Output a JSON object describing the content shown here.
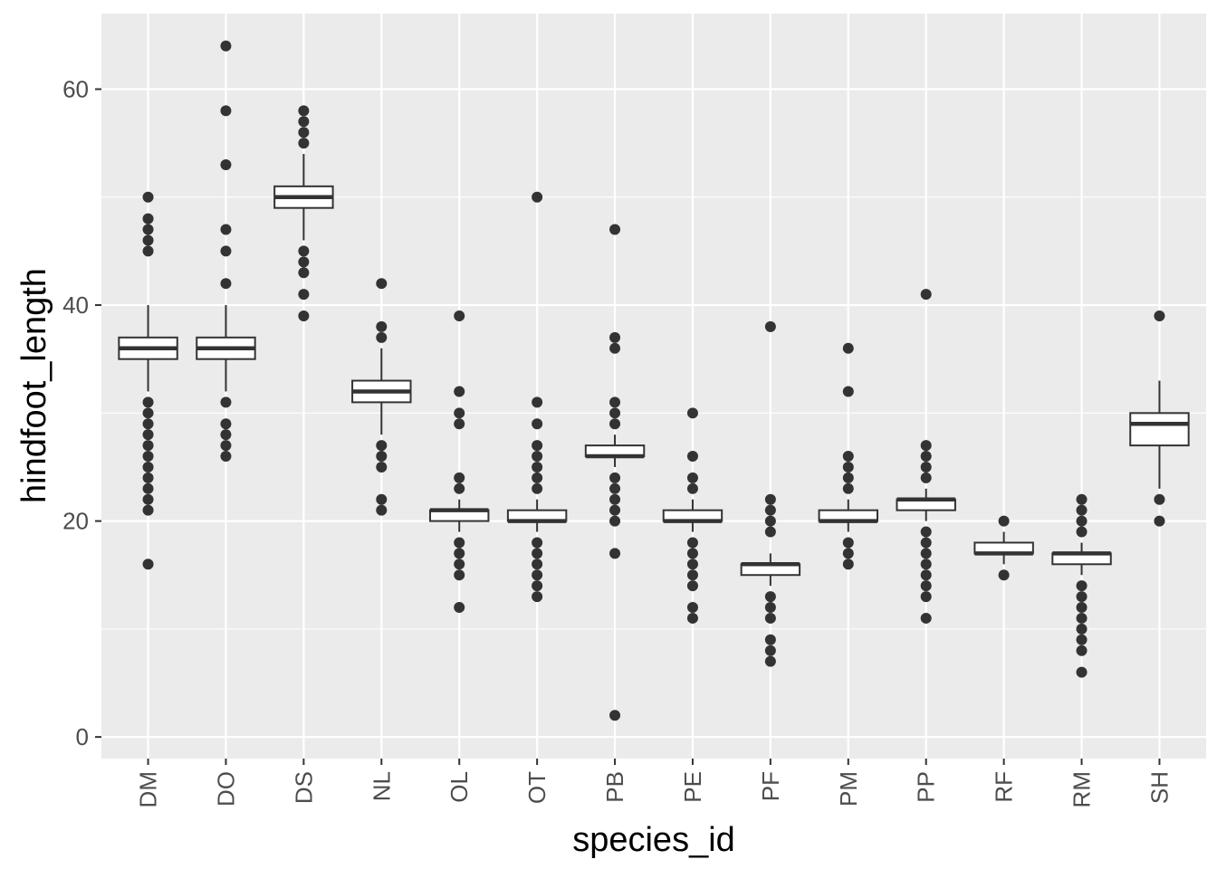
{
  "chart_data": {
    "type": "boxplot",
    "xlabel": "species_id",
    "ylabel": "hindfoot_length",
    "ylim": [
      -2,
      67
    ],
    "y_major_ticks": [
      0,
      20,
      40,
      60
    ],
    "y_minor_ticks": [
      10,
      30,
      50
    ],
    "y_tick_labels": [
      "0",
      "20",
      "40",
      "60"
    ],
    "grid": true,
    "categories": [
      "DM",
      "DO",
      "DS",
      "NL",
      "OL",
      "OT",
      "PB",
      "PE",
      "PF",
      "PM",
      "PP",
      "RF",
      "RM",
      "SH"
    ],
    "boxes": [
      {
        "species": "DM",
        "min": 32,
        "q1": 35,
        "median": 36,
        "q3": 37,
        "max": 40,
        "outliers": [
          16,
          21,
          22,
          23,
          24,
          25,
          26,
          27,
          28,
          29,
          30,
          31,
          45,
          46,
          47,
          48,
          50
        ]
      },
      {
        "species": "DO",
        "min": 32,
        "q1": 35,
        "median": 36,
        "q3": 37,
        "max": 40,
        "outliers": [
          26,
          27,
          28,
          29,
          31,
          42,
          45,
          47,
          53,
          58,
          64
        ]
      },
      {
        "species": "DS",
        "min": 46,
        "q1": 49,
        "median": 50,
        "q3": 51,
        "max": 54,
        "outliers": [
          39,
          41,
          43,
          44,
          45,
          55,
          56,
          57,
          58
        ]
      },
      {
        "species": "NL",
        "min": 28,
        "q1": 31,
        "median": 32,
        "q3": 33,
        "max": 36,
        "outliers": [
          21,
          22,
          25,
          26,
          27,
          37,
          38,
          42
        ]
      },
      {
        "species": "OL",
        "min": 19,
        "q1": 20,
        "median": 21,
        "q3": 21,
        "max": 22,
        "outliers": [
          12,
          15,
          16,
          17,
          18,
          23,
          24,
          29,
          30,
          32,
          39
        ]
      },
      {
        "species": "OT",
        "min": 19,
        "q1": 20,
        "median": 20,
        "q3": 21,
        "max": 22,
        "outliers": [
          13,
          14,
          15,
          16,
          17,
          18,
          23,
          24,
          25,
          26,
          27,
          29,
          31,
          50
        ]
      },
      {
        "species": "PB",
        "min": 25,
        "q1": 26,
        "median": 26,
        "q3": 27,
        "max": 28,
        "outliers": [
          2,
          17,
          20,
          21,
          22,
          23,
          24,
          29,
          30,
          31,
          36,
          37,
          47
        ]
      },
      {
        "species": "PE",
        "min": 19,
        "q1": 20,
        "median": 20,
        "q3": 21,
        "max": 22,
        "outliers": [
          11,
          12,
          14,
          15,
          16,
          17,
          18,
          23,
          24,
          26,
          30
        ]
      },
      {
        "species": "PF",
        "min": 14,
        "q1": 15,
        "median": 16,
        "q3": 16,
        "max": 17,
        "outliers": [
          7,
          8,
          9,
          11,
          12,
          13,
          19,
          20,
          21,
          22,
          38
        ]
      },
      {
        "species": "PM",
        "min": 19,
        "q1": 20,
        "median": 20,
        "q3": 21,
        "max": 22,
        "outliers": [
          16,
          17,
          18,
          23,
          24,
          25,
          26,
          32,
          36
        ]
      },
      {
        "species": "PP",
        "min": 20,
        "q1": 21,
        "median": 22,
        "q3": 22,
        "max": 23,
        "outliers": [
          11,
          13,
          14,
          15,
          16,
          17,
          18,
          19,
          24,
          25,
          26,
          27,
          41
        ]
      },
      {
        "species": "RF",
        "min": 16,
        "q1": 17,
        "median": 17,
        "q3": 18,
        "max": 19,
        "outliers": [
          15,
          20
        ]
      },
      {
        "species": "RM",
        "min": 15,
        "q1": 16,
        "median": 17,
        "q3": 17,
        "max": 18,
        "outliers": [
          6,
          8,
          9,
          10,
          11,
          12,
          13,
          14,
          19,
          20,
          21,
          22
        ]
      },
      {
        "species": "SH",
        "min": 23,
        "q1": 27,
        "median": 29,
        "q3": 30,
        "max": 33,
        "outliers": [
          20,
          22,
          39
        ]
      }
    ]
  }
}
